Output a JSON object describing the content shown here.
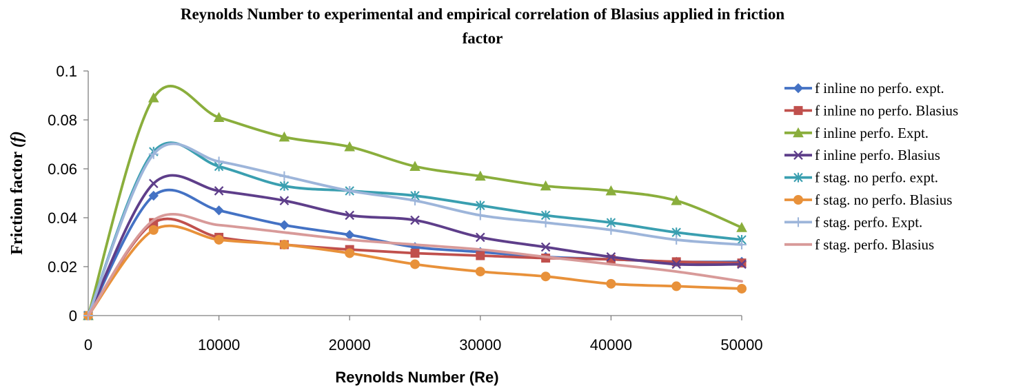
{
  "chart_data": {
    "type": "line",
    "title": "Reynolds Number to experimental and empirical correlation of Blasius applied in friction factor",
    "title_lines": [
      "Reynolds Number to experimental and empirical correlation of Blasius applied in friction",
      "factor"
    ],
    "xlabel": "Reynolds Number (Re)",
    "ylabel_main": "Friction factor ",
    "ylabel_italic": "(f)",
    "xlim": [
      0,
      50000
    ],
    "ylim": [
      0,
      0.1
    ],
    "x_ticks": [
      "0",
      "10000",
      "20000",
      "30000",
      "40000",
      "50000"
    ],
    "y_ticks": [
      "0",
      "0.02",
      "0.04",
      "0.06",
      "0.08",
      "0.1"
    ],
    "grid": false,
    "legend_position": "right",
    "smoothed": true,
    "x": [
      0,
      5000,
      10000,
      15000,
      20000,
      25000,
      30000,
      35000,
      40000,
      45000,
      50000
    ],
    "series": [
      {
        "name": "f inline no perfo. expt.",
        "color": "#4472C4",
        "marker": "diamond",
        "values": [
          0,
          0.049,
          0.043,
          0.037,
          0.033,
          0.028,
          0.026,
          0.024,
          0.023,
          0.022,
          0.022
        ]
      },
      {
        "name": "f inline no perfo. Blasius",
        "color": "#C0504D",
        "marker": "square",
        "values": [
          0,
          0.038,
          0.032,
          0.029,
          0.027,
          0.0255,
          0.0245,
          0.0235,
          0.023,
          0.022,
          0.0215
        ]
      },
      {
        "name": "f inline perfo. Expt.",
        "color": "#8AAE3C",
        "marker": "triangle",
        "values": [
          0,
          0.089,
          0.081,
          0.073,
          0.069,
          0.061,
          0.057,
          0.053,
          0.051,
          0.047,
          0.036
        ]
      },
      {
        "name": "f inline perfo. Blasius",
        "color": "#5E3E8A",
        "marker": "x",
        "values": [
          0,
          0.054,
          0.051,
          0.047,
          0.041,
          0.039,
          0.032,
          0.028,
          0.024,
          0.021,
          0.021
        ]
      },
      {
        "name": "f stag. no perfo. expt.",
        "color": "#3A9FB0",
        "marker": "star",
        "values": [
          0,
          0.067,
          0.061,
          0.053,
          0.051,
          0.049,
          0.045,
          0.041,
          0.038,
          0.034,
          0.031
        ]
      },
      {
        "name": "f stag. no perfo. Blasius",
        "color": "#E8913A",
        "marker": "circle",
        "values": [
          0,
          0.035,
          0.031,
          0.029,
          0.0255,
          0.021,
          0.018,
          0.016,
          0.013,
          0.012,
          0.011
        ]
      },
      {
        "name": "f stag. perfo. Expt.",
        "color": "#9DB5DA",
        "marker": "plus",
        "values": [
          0,
          0.066,
          0.063,
          0.057,
          0.051,
          0.047,
          0.041,
          0.038,
          0.035,
          0.031,
          0.029
        ]
      },
      {
        "name": "f stag. perfo. Blasius",
        "color": "#D89A99",
        "marker": "none",
        "values": [
          0,
          0.039,
          0.037,
          0.034,
          0.031,
          0.029,
          0.027,
          0.024,
          0.021,
          0.018,
          0.014
        ]
      }
    ]
  }
}
